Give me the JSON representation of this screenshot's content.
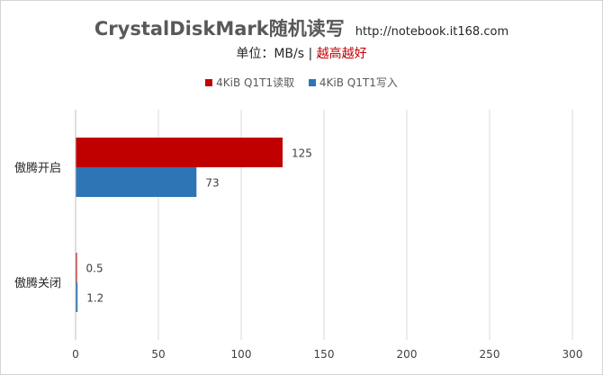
{
  "chart_data": {
    "type": "bar",
    "orientation": "horizontal",
    "title": "CrystalDiskMark随机读写",
    "title_note": "http://notebook.it168.com",
    "subtitle_prefix": "单位：MB/s | ",
    "subtitle_highlight": "越高越好",
    "categories": [
      "傲腾开启",
      "傲腾关闭"
    ],
    "series": [
      {
        "name": "4KiB Q1T1读取",
        "color": "#c00000",
        "values": [
          125,
          0.5
        ]
      },
      {
        "name": "4KiB Q1T1写入",
        "color": "#2e75b6",
        "values": [
          73,
          1.2
        ]
      }
    ],
    "data_labels": [
      [
        "125",
        "0.5"
      ],
      [
        "73",
        "1.2"
      ]
    ],
    "xlim": [
      0,
      300
    ],
    "x_ticks": [
      0,
      50,
      100,
      150,
      200,
      250,
      300
    ],
    "x_tick_labels": [
      "0",
      "50",
      "100",
      "150",
      "200",
      "250",
      "300"
    ],
    "grid": "vertical",
    "legend_position": "top-center"
  }
}
